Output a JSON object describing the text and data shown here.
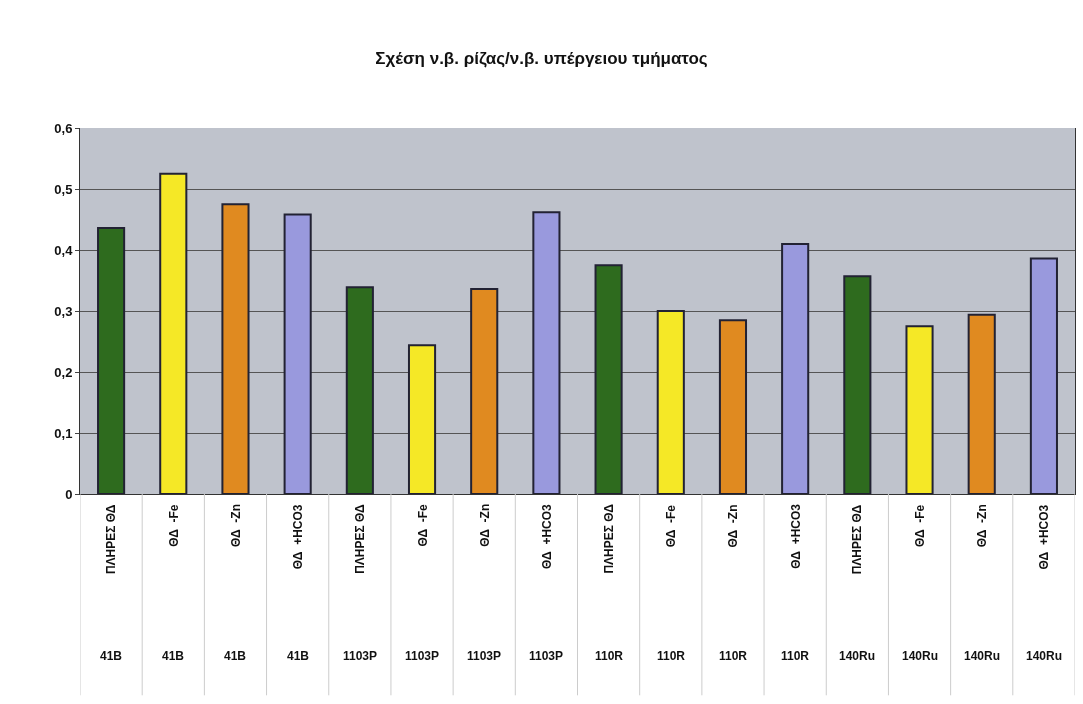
{
  "chart_data": {
    "type": "bar",
    "title": "Σχέση ν.β. ρίζας/ν.β. υπέργειου τμήματος",
    "categories": [
      "ΠΛΗΡΕΣ ΘΔ\n41B",
      "ΘΔ  -Fe\n41B",
      "ΘΔ  -Zn\n41B",
      "ΘΔ  +HCO3\n41B",
      "ΠΛΗΡΕΣ ΘΔ\n1103P",
      "ΘΔ  -Fe\n1103P",
      "ΘΔ  -Zn\n1103P",
      "ΘΔ  +HCO3\n1103P",
      "ΠΛΗΡΕΣ ΘΔ\n110R",
      "ΘΔ  -Fe\n110R",
      "ΘΔ  -Zn\n110R",
      "ΘΔ  +HCO3\n110R",
      "ΠΛΗΡΕΣ ΘΔ\n140Ru",
      "ΘΔ  -Fe\n140Ru",
      "ΘΔ  -Zn\n140Ru",
      "ΘΔ  +HCO3\n140Ru"
    ],
    "values": [
      0.436,
      0.525,
      0.475,
      0.458,
      0.339,
      0.244,
      0.336,
      0.462,
      0.375,
      0.3,
      0.285,
      0.41,
      0.357,
      0.275,
      0.294,
      0.386
    ],
    "colors": [
      "#2e6b1e",
      "#f5e826",
      "#e08a20",
      "#9999dd",
      "#2e6b1e",
      "#f5e826",
      "#e08a20",
      "#9999dd",
      "#2e6b1e",
      "#f5e826",
      "#e08a20",
      "#9999dd",
      "#2e6b1e",
      "#f5e826",
      "#e08a20",
      "#9999dd"
    ],
    "ylim": [
      0,
      0.6
    ],
    "yticks": [
      {
        "value": 0,
        "label": "0"
      },
      {
        "value": 0.1,
        "label": "0,1"
      },
      {
        "value": 0.2,
        "label": "0,2"
      },
      {
        "value": 0.3,
        "label": "0,3"
      },
      {
        "value": 0.4,
        "label": "0,4"
      },
      {
        "value": 0.5,
        "label": "0,5"
      },
      {
        "value": 0.6,
        "label": "0,6"
      }
    ],
    "grid": "y"
  }
}
